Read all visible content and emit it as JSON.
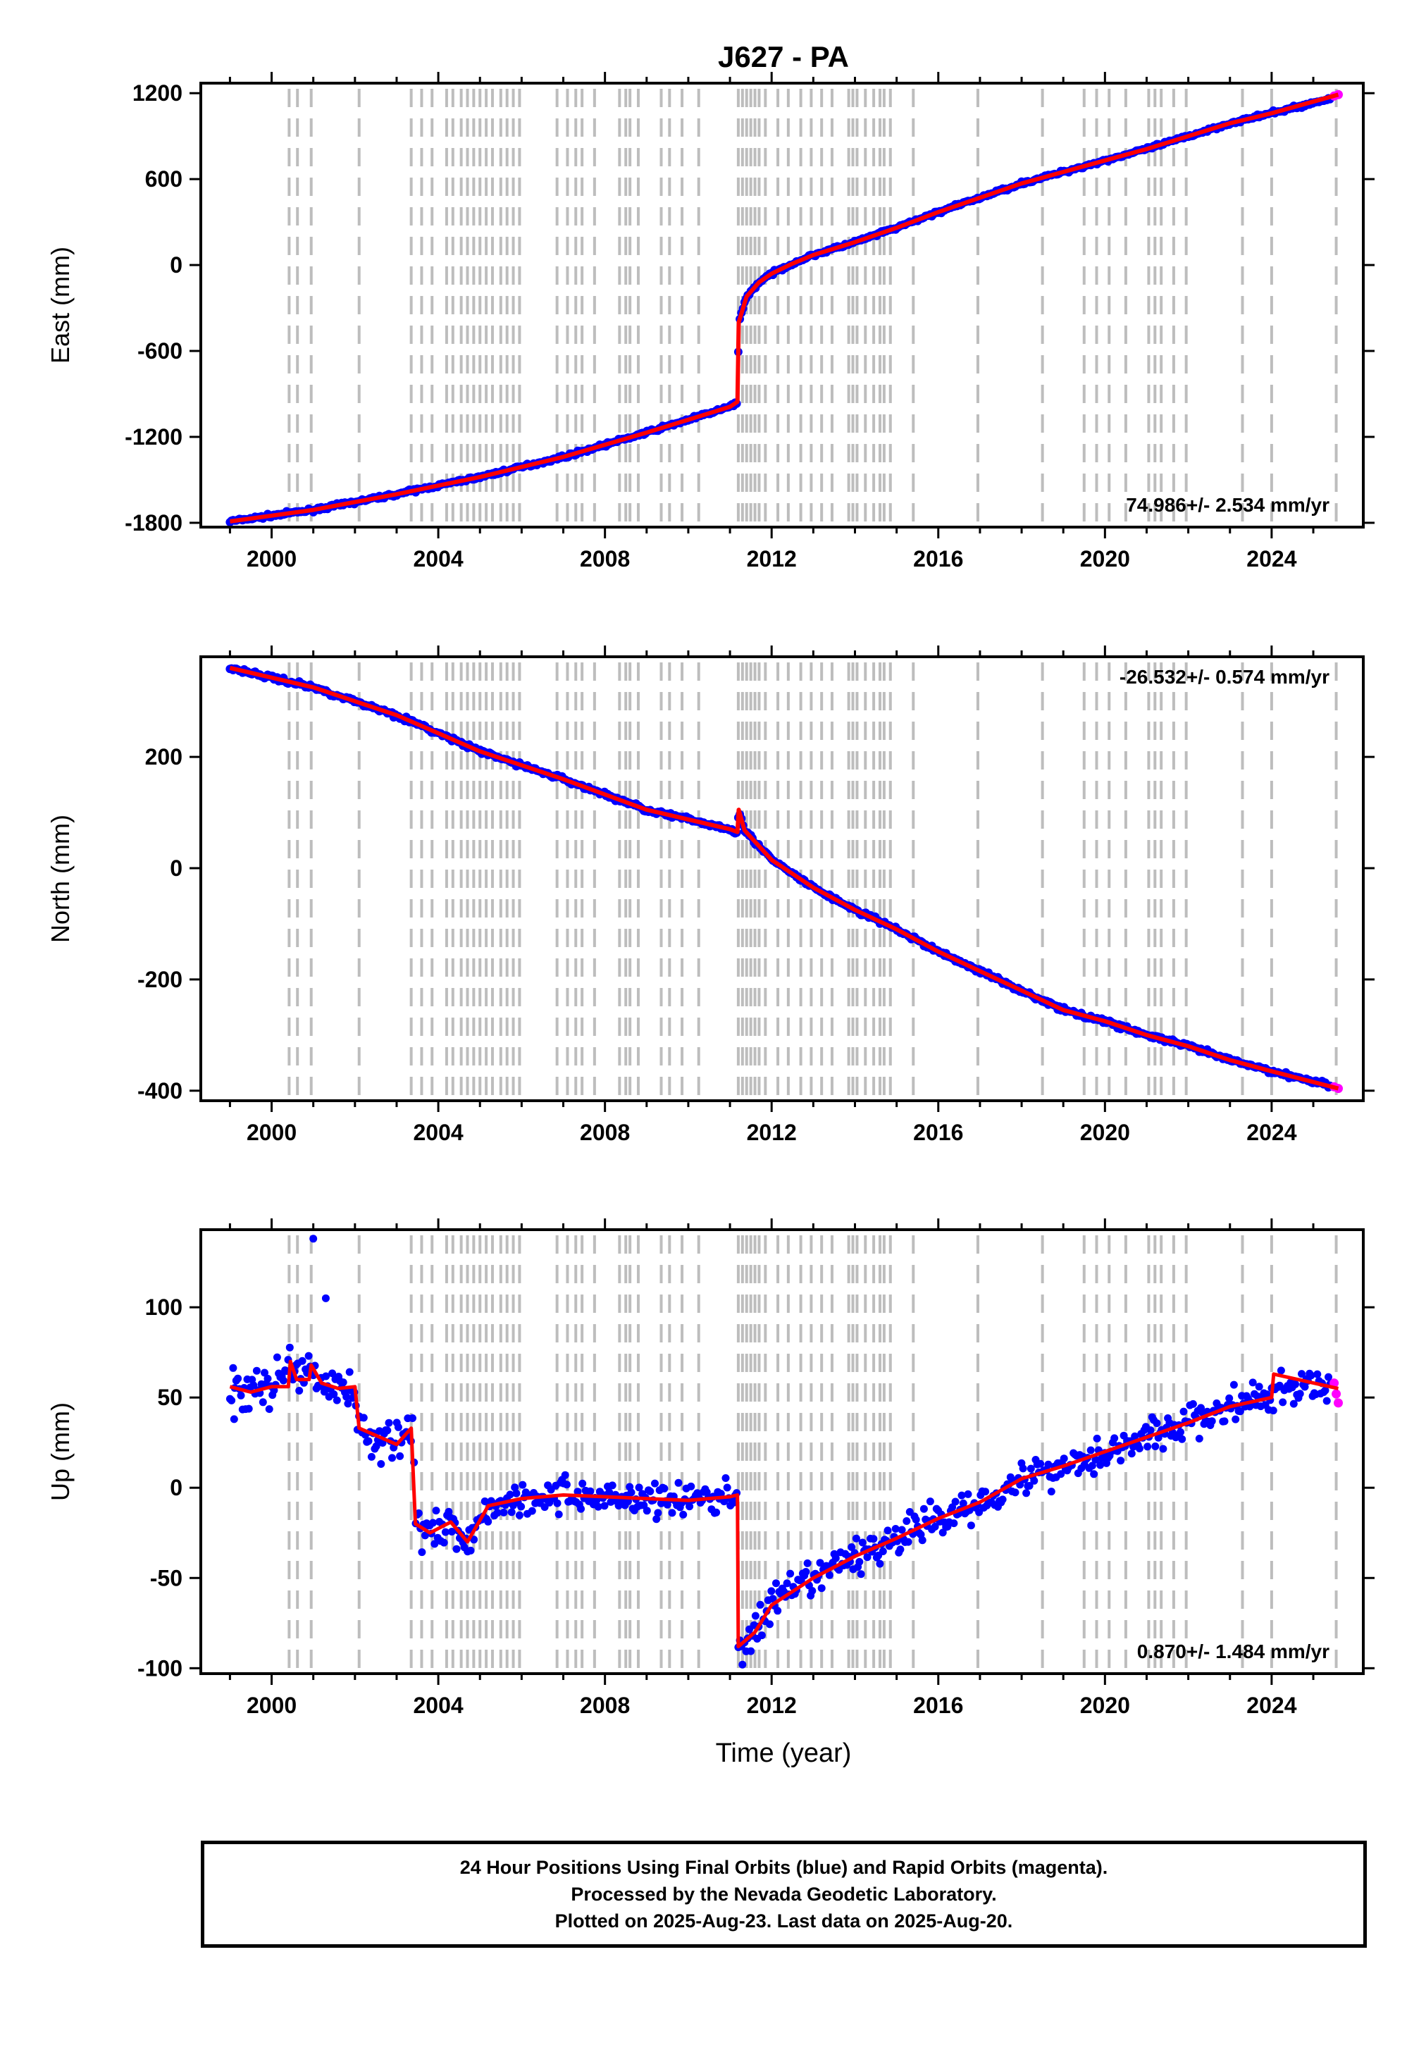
{
  "chart_data": {
    "type": "scatter",
    "title": "J627 - PA",
    "xlabel": "Time (year)",
    "xlim": [
      1998.3,
      2026.2
    ],
    "x_ticks": [
      2000,
      2004,
      2008,
      2012,
      2016,
      2020,
      2024
    ],
    "x_tick_labels": [
      "2000",
      "2004",
      "2008",
      "2012",
      "2016",
      "2020",
      "2024"
    ],
    "grid": false,
    "equipment_change_lines": [
      2000.42,
      2000.62,
      2000.95,
      2002.1,
      2003.35,
      2003.6,
      2003.85,
      2004.2,
      2004.35,
      2004.55,
      2004.7,
      2004.85,
      2005.0,
      2005.15,
      2005.3,
      2005.5,
      2005.65,
      2005.8,
      2005.95,
      2006.85,
      2007.1,
      2007.3,
      2007.45,
      2007.75,
      2008.35,
      2008.5,
      2008.6,
      2008.8,
      2009.35,
      2009.55,
      2009.85,
      2010.25,
      2011.2,
      2011.3,
      2011.4,
      2011.5,
      2011.6,
      2011.7,
      2011.85,
      2012.15,
      2012.4,
      2012.7,
      2012.95,
      2013.2,
      2013.45,
      2013.85,
      2013.95,
      2014.05,
      2014.25,
      2014.45,
      2014.6,
      2014.7,
      2014.85,
      2015.4,
      2016.95,
      2018.5,
      2019.5,
      2019.8,
      2020.1,
      2020.5,
      2021.05,
      2021.2,
      2021.35,
      2021.65,
      2021.95,
      2023.3,
      2024.0,
      2025.55
    ],
    "panels": [
      {
        "name": "east",
        "ylabel": "East (mm)",
        "ylim": [
          -1830,
          1270
        ],
        "y_ticks": [
          -1800,
          -1200,
          -600,
          0,
          600,
          1200
        ],
        "y_tick_labels": [
          "-1800",
          "-1200",
          "-600",
          "0",
          "600",
          "1200"
        ],
        "rate_label": "74.986+/- 2.534 mm/yr",
        "rate_position": "bottom-right",
        "series": [
          {
            "name": "Final Orbits",
            "color": "#0000ff",
            "x": [
              1999.0,
              2001.0,
              2003.0,
              2005.0,
              2007.0,
              2009.0,
              2011.0,
              2011.18,
              2011.21,
              2011.4,
              2011.7,
              2012.0,
              2012.5,
              2013.0,
              2014.0,
              2015.0,
              2016.0,
              2017.0,
              2018.0,
              2019.0,
              2020.0,
              2021.0,
              2022.0,
              2023.0,
              2024.0,
              2025.4
            ],
            "values": [
              -1790,
              -1710,
              -1600,
              -1480,
              -1340,
              -1170,
              -990,
              -955,
              -400,
              -220,
              -120,
              -60,
              10,
              70,
              160,
              260,
              370,
              470,
              570,
              650,
              730,
              810,
              900,
              990,
              1060,
              1160
            ]
          },
          {
            "name": "Rapid Orbits",
            "color": "#ff00ff",
            "x": [
              2025.5,
              2025.6
            ],
            "values": [
              1180,
              1190
            ]
          }
        ],
        "model": {
          "color": "#ff0000",
          "x": [
            1999.0,
            2001.0,
            2003.0,
            2005.0,
            2007.0,
            2009.0,
            2011.0,
            2011.18,
            2011.21,
            2011.4,
            2011.7,
            2012.0,
            2012.5,
            2013.0,
            2014.0,
            2015.0,
            2016.0,
            2017.0,
            2018.0,
            2019.0,
            2020.0,
            2021.0,
            2022.0,
            2023.0,
            2024.0,
            2025.6
          ],
          "values": [
            -1790,
            -1710,
            -1600,
            -1480,
            -1340,
            -1170,
            -990,
            -955,
            -400,
            -220,
            -120,
            -60,
            10,
            70,
            160,
            260,
            370,
            470,
            570,
            650,
            730,
            810,
            900,
            990,
            1060,
            1190
          ]
        }
      },
      {
        "name": "north",
        "ylabel": "North (mm)",
        "ylim": [
          -418,
          380
        ],
        "y_ticks": [
          -400,
          -200,
          0,
          200
        ],
        "y_tick_labels": [
          "-400",
          "-200",
          "0",
          "200"
        ],
        "rate_label": "-26.532+/- 0.574 mm/yr",
        "rate_position": "top-right",
        "series": [
          {
            "name": "Final Orbits",
            "color": "#0000ff",
            "x": [
              1999.0,
              2001.0,
              2003.0,
              2005.0,
              2007.0,
              2009.0,
              2011.0,
              2011.18,
              2011.21,
              2011.35,
              2012.0,
              2013.0,
              2014.0,
              2015.0,
              2016.0,
              2017.0,
              2018.0,
              2019.0,
              2020.0,
              2021.0,
              2022.0,
              2023.0,
              2024.0,
              2025.4
            ],
            "values": [
              360,
              325,
              275,
              210,
              160,
              105,
              70,
              65,
              108,
              68,
              15,
              -35,
              -75,
              -110,
              -150,
              -185,
              -220,
              -255,
              -275,
              -300,
              -320,
              -345,
              -365,
              -390
            ]
          },
          {
            "name": "Rapid Orbits",
            "color": "#ff00ff",
            "x": [
              2025.5,
              2025.6
            ],
            "values": [
              -393,
              -396
            ]
          }
        ],
        "model": {
          "color": "#ff0000",
          "x": [
            1999.0,
            2001.0,
            2003.0,
            2005.0,
            2007.0,
            2009.0,
            2011.0,
            2011.18,
            2011.21,
            2011.35,
            2012.0,
            2013.0,
            2014.0,
            2015.0,
            2016.0,
            2017.0,
            2018.0,
            2019.0,
            2020.0,
            2021.0,
            2022.0,
            2023.0,
            2024.0,
            2025.6
          ],
          "values": [
            360,
            325,
            275,
            210,
            160,
            105,
            70,
            65,
            105,
            68,
            15,
            -35,
            -75,
            -110,
            -150,
            -185,
            -220,
            -255,
            -275,
            -300,
            -320,
            -345,
            -365,
            -396
          ]
        }
      },
      {
        "name": "up",
        "ylabel": "Up (mm)",
        "ylim": [
          -103,
          143
        ],
        "y_ticks": [
          -100,
          -50,
          0,
          50,
          100
        ],
        "y_tick_labels": [
          "-100",
          "-50",
          "0",
          "50",
          "100"
        ],
        "rate_label": "0.870+/- 1.484 mm/yr",
        "rate_position": "bottom-right",
        "series": [
          {
            "name": "Final Orbits",
            "color": "#0000ff",
            "x": [
              1999.0,
              1999.5,
              2000.0,
              2000.4,
              2000.6,
              2000.9,
              2001.2,
              2001.6,
              2002.0,
              2002.1,
              2002.6,
              2003.0,
              2003.4,
              2003.45,
              2003.8,
              2004.3,
              2004.7,
              2005.2,
              2006.0,
              2007.0,
              2008.0,
              2009.0,
              2010.0,
              2011.0,
              2011.18,
              2011.2,
              2011.6,
              2012.0,
              2013.0,
              2014.0,
              2015.0,
              2016.0,
              2017.0,
              2018.0,
              2019.0,
              2020.0,
              2021.0,
              2022.0,
              2023.0,
              2024.0,
              2024.5,
              2025.4
            ],
            "values": [
              56,
              53,
              56,
              70,
              58,
              68,
              58,
              55,
              56,
              33,
              28,
              24,
              33,
              -20,
              -25,
              -19,
              -30,
              -10,
              -6,
              -4,
              -5,
              -6,
              -7,
              -5,
              -4,
              -88,
              -80,
              -65,
              -50,
              -38,
              -28,
              -17,
              -8,
              5,
              12,
              20,
              28,
              36,
              45,
              50,
              56,
              55
            ],
            "outliers": [
              [
                2001.0,
                138
              ],
              [
                2001.3,
                105
              ],
              [
                1999.1,
                38
              ],
              [
                2011.3,
                -98
              ]
            ]
          },
          {
            "name": "Rapid Orbits",
            "color": "#ff00ff",
            "x": [
              2025.5,
              2025.55,
              2025.6
            ],
            "values": [
              58,
              52,
              47
            ]
          }
        ],
        "model": {
          "color": "#ff0000",
          "x": [
            1999.0,
            1999.5,
            2000.0,
            2000.4,
            2000.45,
            2000.6,
            2000.9,
            2000.95,
            2001.2,
            2001.6,
            2002.0,
            2002.1,
            2002.6,
            2003.0,
            2003.35,
            2003.45,
            2003.8,
            2004.3,
            2004.7,
            2005.2,
            2006.0,
            2007.0,
            2008.0,
            2009.0,
            2010.0,
            2011.0,
            2011.18,
            2011.2,
            2011.6,
            2012.0,
            2013.0,
            2014.0,
            2015.0,
            2016.0,
            2017.0,
            2018.0,
            2019.0,
            2020.0,
            2021.0,
            2022.0,
            2023.0,
            2024.0,
            2024.05,
            2025.6
          ],
          "values": [
            56,
            53,
            56,
            56,
            70,
            60,
            60,
            68,
            58,
            55,
            56,
            33,
            28,
            24,
            33,
            -20,
            -25,
            -19,
            -30,
            -10,
            -6,
            -4,
            -5,
            -6,
            -7,
            -5,
            -4,
            -88,
            -80,
            -65,
            -50,
            -38,
            -28,
            -17,
            -8,
            5,
            12,
            20,
            28,
            36,
            45,
            50,
            63,
            55
          ]
        }
      }
    ]
  },
  "footer": {
    "line1": "24 Hour Positions Using Final Orbits (blue) and Rapid Orbits (magenta).",
    "line2": "Processed by the Nevada Geodetic Laboratory.",
    "line3": "Plotted on 2025-Aug-23. Last data on 2025-Aug-20."
  }
}
